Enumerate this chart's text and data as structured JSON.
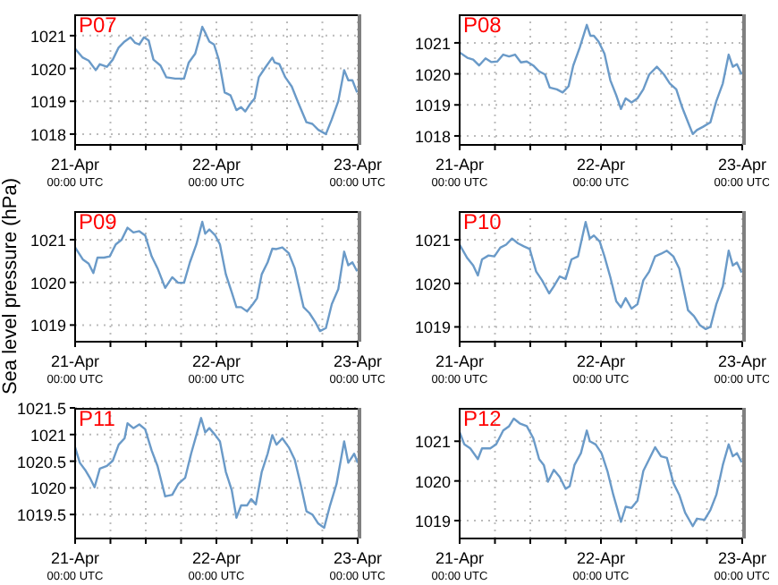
{
  "chart_data": [
    {
      "type": "line",
      "title": "P07",
      "color": "#6a9ac8",
      "grid": true,
      "xlim": [
        "--04-21T00:00",
        "--04-23T00:00"
      ],
      "xticks": [
        {
          "value": "--04-21T00:00",
          "label": "21-Apr\n00:00 UTC"
        },
        {
          "value": "--04-21T06:00",
          "label": null
        },
        {
          "value": "--04-21T12:00",
          "label": null
        },
        {
          "value": "--04-21T18:00",
          "label": null
        },
        {
          "value": "--04-22T00:00",
          "label": "22-Apr\n00:00 UTC"
        },
        {
          "value": "--04-22T06:00",
          "label": null
        },
        {
          "value": "--04-22T12:00",
          "label": null
        },
        {
          "value": "--04-22T18:00",
          "label": null
        },
        {
          "value": "--04-23T00:00",
          "label": "23-Apr\n00:00 UTC"
        }
      ],
      "ylim": [
        1017.67,
        1021.65
      ],
      "yticks": [
        1018,
        1019,
        1020,
        1021
      ],
      "x": [
        "--04-21T00:00",
        "--04-21T01:18",
        "--04-21T02:18",
        "--04-21T03:30",
        "--04-21T04:12",
        "--04-21T05:24",
        "--04-21T06:24",
        "--04-21T07:24",
        "--04-21T08:24",
        "--04-21T09:24",
        "--04-21T10:12",
        "--04-21T10:54",
        "--04-21T11:42",
        "--04-21T12:30",
        "--04-21T13:18",
        "--04-21T14:30",
        "--04-21T15:30",
        "--04-21T17:00",
        "--04-21T18:30",
        "--04-21T19:18",
        "--04-21T20:24",
        "--04-21T21:06",
        "--04-21T21:36",
        "--04-21T22:06",
        "--04-21T22:48",
        "--04-21T23:36",
        "--04-22T00:24",
        "--04-22T01:24",
        "--04-22T02:24",
        "--04-22T03:24",
        "--04-22T04:12",
        "--04-22T04:54",
        "--04-22T05:42",
        "--04-22T06:30",
        "--04-22T07:12",
        "--04-22T08:12",
        "--04-22T09:30",
        "--04-22T09:54",
        "--04-22T10:42",
        "--04-22T11:42",
        "--04-22T12:48",
        "--04-22T13:48",
        "--04-22T15:18",
        "--04-22T16:18",
        "--04-22T17:18",
        "--04-22T18:36",
        "--04-22T19:36",
        "--04-22T20:42",
        "--04-22T21:42",
        "--04-22T22:24",
        "--04-22T23:06",
        "--04-22T23:54"
      ],
      "values": [
        1020.6,
        1020.33,
        1020.24,
        1019.95,
        1020.13,
        1020.05,
        1020.27,
        1020.64,
        1020.82,
        1020.95,
        1020.78,
        1020.73,
        1020.95,
        1020.85,
        1020.27,
        1020.09,
        1019.73,
        1019.69,
        1019.69,
        1020.18,
        1020.45,
        1020.91,
        1021.27,
        1021.09,
        1020.82,
        1020.73,
        1020.27,
        1019.27,
        1019.18,
        1018.73,
        1018.82,
        1018.69,
        1018.91,
        1019.09,
        1019.73,
        1020.0,
        1020.33,
        1020.18,
        1020.13,
        1019.73,
        1019.45,
        1019.0,
        1018.36,
        1018.31,
        1018.13,
        1018.0,
        1018.45,
        1019.0,
        1019.95,
        1019.64,
        1019.64,
        1019.27
      ]
    },
    {
      "type": "line",
      "title": "P08",
      "color": "#6a9ac8",
      "grid": true,
      "xlim": [
        "--04-21T00:00",
        "--04-23T00:00"
      ],
      "xticks": [
        {
          "value": "--04-21T00:00",
          "label": "21-Apr\n00:00 UTC"
        },
        {
          "value": "--04-21T06:00",
          "label": null
        },
        {
          "value": "--04-21T12:00",
          "label": null
        },
        {
          "value": "--04-21T18:00",
          "label": null
        },
        {
          "value": "--04-22T00:00",
          "label": "22-Apr\n00:00 UTC"
        },
        {
          "value": "--04-22T06:00",
          "label": null
        },
        {
          "value": "--04-22T12:00",
          "label": null
        },
        {
          "value": "--04-22T18:00",
          "label": null
        },
        {
          "value": "--04-23T00:00",
          "label": "23-Apr\n00:00 UTC"
        }
      ],
      "ylim": [
        1017.71,
        1021.92
      ],
      "yticks": [
        1018,
        1019,
        1020,
        1021
      ],
      "x": [
        "--04-21T00:00",
        "--04-21T01:18",
        "--04-21T02:18",
        "--04-21T03:18",
        "--04-21T04:24",
        "--04-21T05:24",
        "--04-21T06:24",
        "--04-21T07:24",
        "--04-21T08:24",
        "--04-21T09:24",
        "--04-21T10:24",
        "--04-21T11:24",
        "--04-21T12:30",
        "--04-21T13:30",
        "--04-21T14:30",
        "--04-21T15:18",
        "--04-21T16:30",
        "--04-21T17:30",
        "--04-21T18:30",
        "--04-21T19:18",
        "--04-21T20:24",
        "--04-21T21:36",
        "--04-21T22:12",
        "--04-21T22:48",
        "--04-21T23:36",
        "--04-22T00:36",
        "--04-22T01:36",
        "--04-22T02:36",
        "--04-22T03:24",
        "--04-22T04:12",
        "--04-22T05:12",
        "--04-22T06:12",
        "--04-22T07:12",
        "--04-22T08:12",
        "--04-22T09:30",
        "--04-22T10:42",
        "--04-22T11:42",
        "--04-22T12:48",
        "--04-22T13:48",
        "--04-22T14:48",
        "--04-22T15:36",
        "--04-22T16:18",
        "--04-22T17:18",
        "--04-22T18:36",
        "--04-22T19:36",
        "--04-22T20:42",
        "--04-22T21:42",
        "--04-22T22:24",
        "--04-22T23:06",
        "--04-22T23:54"
      ],
      "values": [
        1020.69,
        1020.52,
        1020.46,
        1020.27,
        1020.5,
        1020.38,
        1020.4,
        1020.62,
        1020.56,
        1020.62,
        1020.37,
        1020.4,
        1020.27,
        1020.08,
        1019.98,
        1019.56,
        1019.5,
        1019.4,
        1019.6,
        1020.27,
        1020.85,
        1021.58,
        1021.23,
        1021.23,
        1021.04,
        1020.65,
        1019.79,
        1019.31,
        1018.87,
        1019.21,
        1019.08,
        1019.21,
        1019.5,
        1019.98,
        1020.23,
        1019.98,
        1019.69,
        1019.5,
        1018.92,
        1018.44,
        1018.06,
        1018.19,
        1018.29,
        1018.44,
        1019.12,
        1019.69,
        1020.62,
        1020.23,
        1020.31,
        1019.98
      ]
    },
    {
      "type": "line",
      "title": "P09",
      "ylabel": "Sea level pressure (hPa)",
      "color": "#6a9ac8",
      "grid": true,
      "xlim": [
        "--04-21T00:00",
        "--04-23T00:00"
      ],
      "xticks": [
        {
          "value": "--04-21T00:00",
          "label": "21-Apr\n00:00 UTC"
        },
        {
          "value": "--04-21T06:00",
          "label": null
        },
        {
          "value": "--04-21T12:00",
          "label": null
        },
        {
          "value": "--04-21T18:00",
          "label": null
        },
        {
          "value": "--04-22T00:00",
          "label": "22-Apr\n00:00 UTC"
        },
        {
          "value": "--04-22T06:00",
          "label": null
        },
        {
          "value": "--04-22T12:00",
          "label": null
        },
        {
          "value": "--04-22T18:00",
          "label": null
        },
        {
          "value": "--04-23T00:00",
          "label": "23-Apr\n00:00 UTC"
        }
      ],
      "ylim": [
        1018.61,
        1021.67
      ],
      "yticks": [
        1019,
        1020,
        1021
      ],
      "x": [
        "--04-21T00:00",
        "--04-21T01:18",
        "--04-21T02:18",
        "--04-21T03:06",
        "--04-21T03:48",
        "--04-21T04:54",
        "--04-21T05:54",
        "--04-21T06:54",
        "--04-21T07:54",
        "--04-21T08:54",
        "--04-21T09:54",
        "--04-21T10:54",
        "--04-21T11:54",
        "--04-21T13:00",
        "--04-21T14:00",
        "--04-21T15:18",
        "--04-21T16:30",
        "--04-21T17:30",
        "--04-21T18:30",
        "--04-21T19:30",
        "--04-21T20:36",
        "--04-21T21:36",
        "--04-21T22:06",
        "--04-21T22:48",
        "--04-21T23:48",
        "--04-22T00:36",
        "--04-22T01:36",
        "--04-22T02:36",
        "--04-22T03:24",
        "--04-22T04:12",
        "--04-22T05:12",
        "--04-22T06:12",
        "--04-22T06:54",
        "--04-22T07:42",
        "--04-22T08:42",
        "--04-22T09:30",
        "--04-22T10:12",
        "--04-22T11:12",
        "--04-22T12:18",
        "--04-22T13:18",
        "--04-22T14:48",
        "--04-22T15:48",
        "--04-22T16:48",
        "--04-22T17:36",
        "--04-22T18:36",
        "--04-22T19:36",
        "--04-22T20:42",
        "--04-22T21:42",
        "--04-22T22:24",
        "--04-22T23:06",
        "--04-22T23:54"
      ],
      "values": [
        1020.82,
        1020.54,
        1020.44,
        1020.22,
        1020.58,
        1020.58,
        1020.61,
        1020.89,
        1021.0,
        1021.28,
        1021.17,
        1021.2,
        1021.1,
        1020.61,
        1020.33,
        1019.87,
        1020.12,
        1019.99,
        1019.99,
        1020.47,
        1020.89,
        1021.42,
        1021.14,
        1021.24,
        1021.1,
        1020.89,
        1020.19,
        1019.77,
        1019.42,
        1019.42,
        1019.32,
        1019.49,
        1019.63,
        1020.19,
        1020.47,
        1020.79,
        1020.78,
        1020.82,
        1020.68,
        1020.33,
        1019.42,
        1019.28,
        1019.07,
        1018.86,
        1018.93,
        1019.49,
        1019.84,
        1020.72,
        1020.4,
        1020.47,
        1020.26
      ]
    },
    {
      "type": "line",
      "title": "P10",
      "color": "#6a9ac8",
      "grid": true,
      "xlim": [
        "--04-21T00:00",
        "--04-23T00:00"
      ],
      "xticks": [
        {
          "value": "--04-21T00:00",
          "label": "21-Apr\n00:00 UTC"
        },
        {
          "value": "--04-21T06:00",
          "label": null
        },
        {
          "value": "--04-21T12:00",
          "label": null
        },
        {
          "value": "--04-21T18:00",
          "label": null
        },
        {
          "value": "--04-22T00:00",
          "label": "22-Apr\n00:00 UTC"
        },
        {
          "value": "--04-22T06:00",
          "label": null
        },
        {
          "value": "--04-22T12:00",
          "label": null
        },
        {
          "value": "--04-22T18:00",
          "label": null
        },
        {
          "value": "--04-23T00:00",
          "label": "23-Apr\n00:00 UTC"
        }
      ],
      "ylim": [
        1018.66,
        1021.66
      ],
      "yticks": [
        1019,
        1020,
        1021
      ],
      "x": [
        "--04-21T00:00",
        "--04-21T01:18",
        "--04-21T02:18",
        "--04-21T03:06",
        "--04-21T03:48",
        "--04-21T04:54",
        "--04-21T05:54",
        "--04-21T06:54",
        "--04-21T07:54",
        "--04-21T08:54",
        "--04-21T09:54",
        "--04-21T10:54",
        "--04-21T11:54",
        "--04-21T13:00",
        "--04-21T14:00",
        "--04-21T15:12",
        "--04-21T16:00",
        "--04-21T17:00",
        "--04-21T18:00",
        "--04-21T19:00",
        "--04-21T20:06",
        "--04-21T21:24",
        "--04-21T22:06",
        "--04-21T22:48",
        "--04-21T23:48",
        "--04-22T00:36",
        "--04-22T01:36",
        "--04-22T02:36",
        "--04-22T03:24",
        "--04-22T04:12",
        "--04-22T05:12",
        "--04-22T06:12",
        "--04-22T07:12",
        "--04-22T08:12",
        "--04-22T09:12",
        "--04-22T10:12",
        "--04-22T11:12",
        "--04-22T12:18",
        "--04-22T13:18",
        "--04-22T14:48",
        "--04-22T15:48",
        "--04-22T16:48",
        "--04-22T17:48",
        "--04-22T18:36",
        "--04-22T19:36",
        "--04-22T20:42",
        "--04-22T21:42",
        "--04-22T22:24",
        "--04-22T23:06",
        "--04-22T23:54"
      ],
      "values": [
        1020.89,
        1020.58,
        1020.41,
        1020.18,
        1020.55,
        1020.64,
        1020.62,
        1020.82,
        1020.89,
        1021.03,
        1020.92,
        1020.85,
        1020.79,
        1020.27,
        1020.07,
        1019.77,
        1019.93,
        1020.16,
        1020.1,
        1020.55,
        1020.62,
        1021.41,
        1021.03,
        1021.1,
        1020.96,
        1020.62,
        1020.14,
        1019.59,
        1019.45,
        1019.66,
        1019.42,
        1019.52,
        1020.07,
        1020.27,
        1020.62,
        1020.68,
        1020.75,
        1020.62,
        1020.34,
        1019.38,
        1019.25,
        1019.04,
        1018.95,
        1019.0,
        1019.52,
        1019.93,
        1020.75,
        1020.41,
        1020.48,
        1020.25
      ]
    },
    {
      "type": "line",
      "title": "P11",
      "color": "#6a9ac8",
      "grid": true,
      "xlim": [
        "--04-21T00:00",
        "--04-23T00:00"
      ],
      "xticks": [
        {
          "value": "--04-21T00:00",
          "label": "21-Apr\n00:00 UTC"
        },
        {
          "value": "--04-21T06:00",
          "label": null
        },
        {
          "value": "--04-21T12:00",
          "label": null
        },
        {
          "value": "--04-21T18:00",
          "label": null
        },
        {
          "value": "--04-22T00:00",
          "label": "22-Apr\n00:00 UTC"
        },
        {
          "value": "--04-22T06:00",
          "label": null
        },
        {
          "value": "--04-22T12:00",
          "label": null
        },
        {
          "value": "--04-22T18:00",
          "label": null
        },
        {
          "value": "--04-23T00:00",
          "label": "23-Apr\n00:00 UTC"
        }
      ],
      "ylim": [
        1019.05,
        1021.5
      ],
      "yticks": [
        1019.5,
        1020,
        1020.5,
        1021,
        1021.5
      ],
      "x": [
        "--04-21T00:00",
        "--04-21T00:48",
        "--04-21T01:48",
        "--04-21T02:30",
        "--04-21T03:18",
        "--04-21T04:12",
        "--04-21T05:24",
        "--04-21T06:24",
        "--04-21T07:24",
        "--04-21T08:24",
        "--04-21T08:54",
        "--04-21T09:54",
        "--04-21T10:54",
        "--04-21T11:54",
        "--04-21T13:00",
        "--04-21T14:00",
        "--04-21T15:18",
        "--04-21T16:30",
        "--04-21T17:30",
        "--04-21T18:42",
        "--04-21T19:42",
        "--04-21T20:36",
        "--04-21T21:24",
        "--04-21T22:06",
        "--04-21T22:48",
        "--04-21T23:48",
        "--04-22T00:36",
        "--04-22T01:36",
        "--04-22T02:36",
        "--04-22T03:24",
        "--04-22T04:12",
        "--04-22T05:12",
        "--04-22T05:54",
        "--04-22T06:42",
        "--04-22T07:42",
        "--04-22T08:42",
        "--04-22T09:30",
        "--04-22T10:12",
        "--04-22T11:12",
        "--04-22T12:18",
        "--04-22T13:18",
        "--04-22T14:18",
        "--04-22T15:18",
        "--04-22T16:18",
        "--04-22T17:18",
        "--04-22T18:18",
        "--04-22T19:18",
        "--04-22T20:24",
        "--04-22T21:42",
        "--04-22T22:24",
        "--04-22T23:24",
        "--04-23T00:00"
      ],
      "values": [
        1020.76,
        1020.47,
        1020.32,
        1020.19,
        1020.01,
        1020.36,
        1020.41,
        1020.51,
        1020.81,
        1020.93,
        1021.21,
        1021.12,
        1021.19,
        1021.1,
        1020.7,
        1020.41,
        1019.84,
        1019.87,
        1020.07,
        1020.19,
        1020.64,
        1020.99,
        1021.31,
        1021.04,
        1021.12,
        1020.99,
        1020.87,
        1020.3,
        1019.96,
        1019.44,
        1019.67,
        1019.67,
        1019.79,
        1019.69,
        1020.3,
        1020.64,
        1020.99,
        1020.81,
        1020.93,
        1020.76,
        1020.53,
        1020.07,
        1019.56,
        1019.5,
        1019.33,
        1019.25,
        1019.67,
        1020.07,
        1020.87,
        1020.47,
        1020.64,
        1020.47
      ]
    },
    {
      "type": "line",
      "title": "P12",
      "color": "#6a9ac8",
      "grid": true,
      "xlim": [
        "--04-21T00:00",
        "--04-23T00:00"
      ],
      "xticks": [
        {
          "value": "--04-21T00:00",
          "label": "21-Apr\n00:00 UTC"
        },
        {
          "value": "--04-21T06:00",
          "label": null
        },
        {
          "value": "--04-21T12:00",
          "label": null
        },
        {
          "value": "--04-21T18:00",
          "label": null
        },
        {
          "value": "--04-22T00:00",
          "label": "22-Apr\n00:00 UTC"
        },
        {
          "value": "--04-22T06:00",
          "label": null
        },
        {
          "value": "--04-22T12:00",
          "label": null
        },
        {
          "value": "--04-22T18:00",
          "label": null
        },
        {
          "value": "--04-23T00:00",
          "label": "23-Apr\n00:00 UTC"
        }
      ],
      "ylim": [
        1018.55,
        1021.84
      ],
      "yticks": [
        1019,
        1020,
        1021
      ],
      "x": [
        "--04-21T00:00",
        "--04-21T00:48",
        "--04-21T01:48",
        "--04-21T03:06",
        "--04-21T03:48",
        "--04-21T05:12",
        "--04-21T06:12",
        "--04-21T07:24",
        "--04-21T08:24",
        "--04-21T09:12",
        "--04-21T10:12",
        "--04-21T11:24",
        "--04-21T12:30",
        "--04-21T13:30",
        "--04-21T14:18",
        "--04-21T15:00",
        "--04-21T16:00",
        "--04-21T17:00",
        "--04-21T18:00",
        "--04-21T18:42",
        "--04-21T19:30",
        "--04-21T20:36",
        "--04-21T21:36",
        "--04-21T22:06",
        "--04-21T23:06",
        "--04-22T00:06",
        "--04-22T01:06",
        "--04-22T02:06",
        "--04-22T03:24",
        "--04-22T04:12",
        "--04-22T05:12",
        "--04-22T06:12",
        "--04-22T07:12",
        "--04-22T08:12",
        "--04-22T09:12",
        "--04-22T10:12",
        "--04-22T11:12",
        "--04-22T12:18",
        "--04-22T13:18",
        "--04-22T14:18",
        "--04-22T15:36",
        "--04-22T16:18",
        "--04-22T17:36",
        "--04-22T18:36",
        "--04-22T19:36",
        "--04-22T20:42",
        "--04-22T21:42",
        "--04-22T22:24",
        "--04-22T23:06",
        "--04-22T23:54"
      ],
      "values": [
        1021.23,
        1020.92,
        1020.82,
        1020.55,
        1020.82,
        1020.82,
        1020.92,
        1021.27,
        1021.38,
        1021.57,
        1021.45,
        1021.38,
        1021.08,
        1020.55,
        1020.4,
        1019.98,
        1020.28,
        1020.1,
        1019.8,
        1019.87,
        1020.4,
        1020.7,
        1021.27,
        1021.0,
        1020.92,
        1020.7,
        1020.25,
        1019.65,
        1018.97,
        1019.35,
        1019.32,
        1019.5,
        1020.25,
        1020.55,
        1020.85,
        1020.62,
        1020.58,
        1019.95,
        1019.65,
        1019.2,
        1018.86,
        1019.05,
        1019.02,
        1019.27,
        1019.65,
        1020.4,
        1020.92,
        1020.62,
        1020.7,
        1020.47
      ]
    }
  ]
}
